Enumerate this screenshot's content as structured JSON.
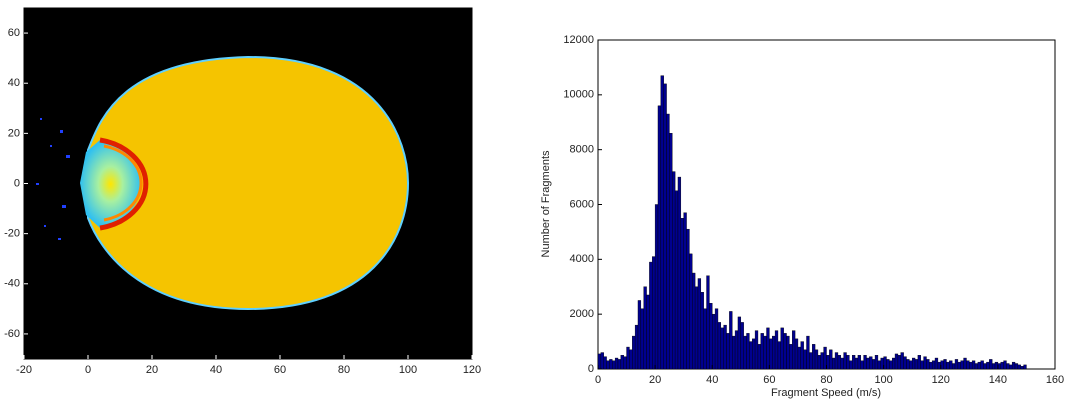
{
  "chart_data": [
    {
      "type": "image",
      "xlim": [
        -20,
        120
      ],
      "ylim": [
        -70,
        70
      ],
      "xticks": [
        -20,
        0,
        20,
        40,
        60,
        80,
        100,
        120
      ],
      "yticks": [
        -60,
        -40,
        -20,
        0,
        20,
        40,
        60
      ]
    },
    {
      "type": "histogram",
      "x_label": "Fragment Speed (m/s)",
      "y_label": "Number of Fragments",
      "color": "#00008f",
      "xlim": [
        0,
        160
      ],
      "ylim": [
        0,
        12000
      ],
      "xticks": [
        0,
        20,
        40,
        60,
        80,
        100,
        120,
        140,
        160
      ],
      "yticks": [
        0,
        2000,
        4000,
        6000,
        8000,
        10000,
        12000
      ],
      "bins": [
        0,
        1,
        2,
        3,
        4,
        5,
        6,
        7,
        8,
        9,
        10,
        11,
        12,
        13,
        14,
        15,
        16,
        17,
        18,
        19,
        20,
        21,
        22,
        23,
        24,
        25,
        26,
        27,
        28,
        29,
        30,
        31,
        32,
        33,
        34,
        35,
        36,
        37,
        38,
        39,
        40,
        41,
        42,
        43,
        44,
        45,
        46,
        47,
        48,
        49,
        50,
        51,
        52,
        53,
        54,
        55,
        56,
        57,
        58,
        59,
        60,
        61,
        62,
        63,
        64,
        65,
        66,
        67,
        68,
        69,
        70,
        71,
        72,
        73,
        74,
        75,
        76,
        77,
        78,
        79,
        80,
        81,
        82,
        83,
        84,
        85,
        86,
        87,
        88,
        89,
        90,
        91,
        92,
        93,
        94,
        95,
        96,
        97,
        98,
        99,
        100,
        101,
        102,
        103,
        104,
        105,
        106,
        107,
        108,
        109,
        110,
        111,
        112,
        113,
        114,
        115,
        116,
        117,
        118,
        119,
        120,
        121,
        122,
        123,
        124,
        125,
        126,
        127,
        128,
        129,
        130,
        131,
        132,
        133,
        134,
        135,
        136,
        137,
        138,
        139,
        140,
        141,
        142,
        143,
        144,
        145,
        146,
        147,
        148,
        149,
        150
      ],
      "values": [
        550,
        600,
        450,
        300,
        350,
        300,
        400,
        350,
        500,
        450,
        800,
        700,
        1200,
        1600,
        2500,
        2200,
        3000,
        2700,
        3900,
        4100,
        6000,
        9600,
        10700,
        10400,
        9300,
        8600,
        7200,
        6500,
        7000,
        5500,
        5700,
        5100,
        4200,
        3500,
        3000,
        3300,
        2800,
        2200,
        3400,
        2400,
        2000,
        2200,
        1700,
        1500,
        1600,
        1300,
        2100,
        1200,
        1400,
        1900,
        1700,
        1200,
        1300,
        1000,
        1100,
        1400,
        900,
        1300,
        1200,
        1500,
        1100,
        1200,
        1400,
        1000,
        1500,
        1300,
        1200,
        900,
        1400,
        1100,
        800,
        1000,
        700,
        1200,
        600,
        900,
        700,
        500,
        600,
        800,
        500,
        700,
        400,
        600,
        500,
        400,
        600,
        500,
        300,
        500,
        400,
        500,
        300,
        500,
        400,
        450,
        350,
        500,
        300,
        400,
        450,
        350,
        300,
        400,
        550,
        500,
        600,
        450,
        350,
        300,
        400,
        350,
        500,
        300,
        450,
        350,
        250,
        300,
        400,
        250,
        300,
        350,
        250,
        300,
        200,
        350,
        250,
        300,
        400,
        300,
        250,
        300,
        200,
        250,
        300,
        200,
        250,
        350,
        200,
        250,
        200,
        250,
        300,
        200,
        150,
        250,
        200,
        150,
        100,
        150
      ]
    }
  ]
}
